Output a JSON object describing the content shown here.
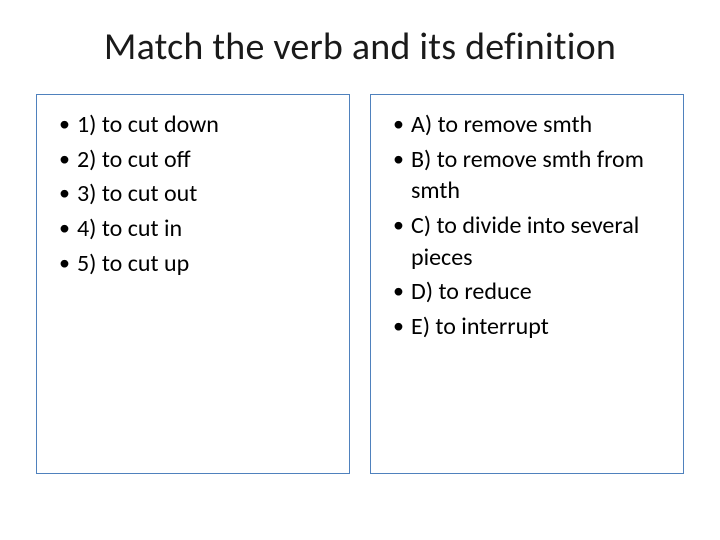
{
  "title": "Match the verb and its definition",
  "colors": {
    "box_border": "#4f81bd",
    "text": "#000000",
    "background": "#ffffff"
  },
  "typography": {
    "title_fontsize": 38,
    "body_fontsize": 24,
    "font_family": "Calibri"
  },
  "layout": {
    "slide_width": 720,
    "slide_height": 540,
    "columns": 2,
    "column_gap": 20
  },
  "left": {
    "items": [
      "1) to cut down",
      "2) to cut off",
      "3) to cut out",
      "4) to cut in",
      "5) to cut up"
    ]
  },
  "right": {
    "items": [
      "A) to remove smth",
      "B) to remove smth from smth",
      "C) to divide into several pieces",
      "D) to reduce",
      "E) to interrupt"
    ]
  }
}
